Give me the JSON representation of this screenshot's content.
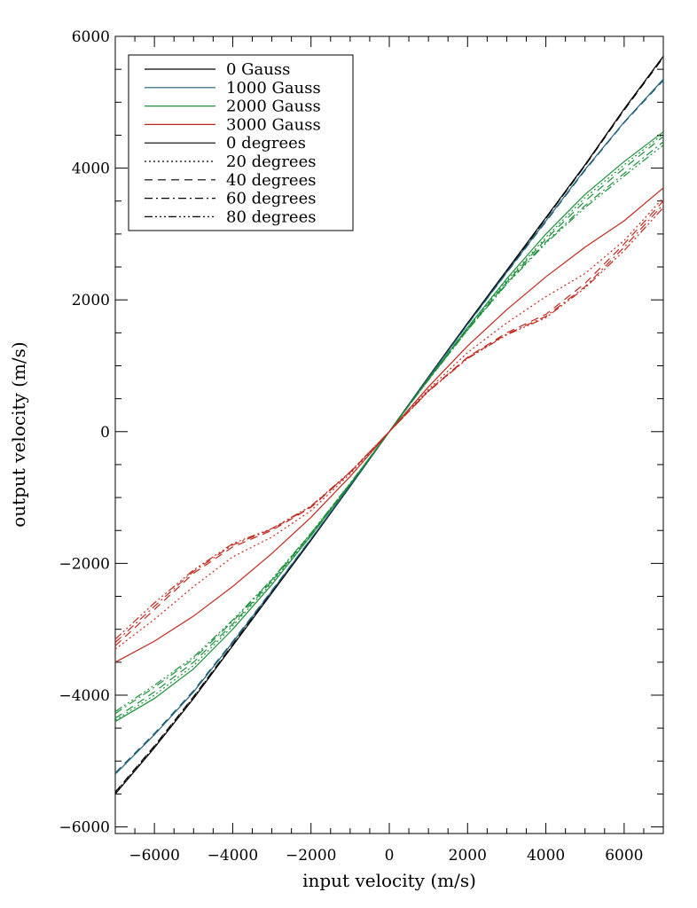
{
  "chart_data": {
    "type": "line",
    "title": "",
    "xlabel": "input velocity (m/s)",
    "ylabel": "output velocity (m/s)",
    "xlim": [
      -7000,
      7000
    ],
    "ylim": [
      -6100,
      6000
    ],
    "x_ticks": [
      -6000,
      -4000,
      -2000,
      0,
      2000,
      4000,
      6000
    ],
    "x_tick_labels": [
      "−6000",
      "−4000",
      "−2000",
      "0",
      "2000",
      "4000",
      "6000"
    ],
    "y_ticks": [
      -6000,
      -4000,
      -2000,
      0,
      2000,
      4000,
      6000
    ],
    "y_tick_labels": [
      "−6000",
      "−4000",
      "−2000",
      "0",
      "2000",
      "4000",
      "6000"
    ],
    "grid": false,
    "legend_position": "top-left",
    "legend": [
      {
        "label": "0 Gauss",
        "color": "#000000",
        "dash": "solid"
      },
      {
        "label": "1000 Gauss",
        "color": "#1f5f7a",
        "dash": "solid"
      },
      {
        "label": "2000 Gauss",
        "color": "#1c8f3a",
        "dash": "solid"
      },
      {
        "label": "3000 Gauss",
        "color": "#c0281e",
        "dash": "solid"
      },
      {
        "label": "0 degrees",
        "color": "#000000",
        "dash": "solid"
      },
      {
        "label": "20 degrees",
        "color": "#000000",
        "dash": "dotted"
      },
      {
        "label": "40 degrees",
        "color": "#000000",
        "dash": "dashed"
      },
      {
        "label": "60 degrees",
        "color": "#000000",
        "dash": "dashdot"
      },
      {
        "label": "80 degrees",
        "color": "#000000",
        "dash": "dashdotdotdot"
      }
    ],
    "x": [
      -7000,
      -6000,
      -5000,
      -4000,
      -3000,
      -2000,
      -1000,
      0,
      1000,
      2000,
      3000,
      4000,
      5000,
      6000,
      7000
    ],
    "series": [
      {
        "field": "0 Gauss",
        "angle": "0 degrees",
        "color": "#000000",
        "dash": "solid",
        "values": [
          -5500,
          -4800,
          -4050,
          -3250,
          -2450,
          -1650,
          -830,
          0,
          830,
          1650,
          2450,
          3250,
          4050,
          4900,
          5700
        ]
      },
      {
        "field": "0 Gauss",
        "angle": "20 degrees",
        "color": "#000000",
        "dash": "dotted",
        "values": [
          -5480,
          -4780,
          -4030,
          -3240,
          -2440,
          -1645,
          -828,
          0,
          828,
          1645,
          2440,
          3240,
          4040,
          4890,
          5690
        ]
      },
      {
        "field": "0 Gauss",
        "angle": "40 degrees",
        "color": "#000000",
        "dash": "dashed",
        "values": [
          -5470,
          -4770,
          -4020,
          -3230,
          -2435,
          -1640,
          -825,
          0,
          825,
          1640,
          2435,
          3235,
          4035,
          4880,
          5680
        ]
      },
      {
        "field": "1000 Gauss",
        "angle": "0 degrees",
        "color": "#1f5f7a",
        "dash": "solid",
        "values": [
          -5200,
          -4600,
          -3950,
          -3200,
          -2420,
          -1630,
          -820,
          0,
          820,
          1630,
          2420,
          3200,
          3980,
          4700,
          5350
        ]
      },
      {
        "field": "1000 Gauss",
        "angle": "40 degrees",
        "color": "#1f5f7a",
        "dash": "dashed",
        "values": [
          -5180,
          -4580,
          -3930,
          -3185,
          -2410,
          -1625,
          -818,
          0,
          818,
          1625,
          2410,
          3185,
          3965,
          4690,
          5330
        ]
      },
      {
        "field": "2000 Gauss",
        "angle": "0 degrees",
        "color": "#1c8f3a",
        "dash": "solid",
        "values": [
          -4400,
          -4050,
          -3600,
          -3000,
          -2320,
          -1580,
          -800,
          0,
          800,
          1580,
          2320,
          3000,
          3600,
          4100,
          4550
        ]
      },
      {
        "field": "2000 Gauss",
        "angle": "20 degrees",
        "color": "#1c8f3a",
        "dash": "dotted",
        "values": [
          -4380,
          -4000,
          -3550,
          -2950,
          -2290,
          -1565,
          -795,
          0,
          795,
          1565,
          2290,
          2950,
          3550,
          4050,
          4520
        ]
      },
      {
        "field": "2000 Gauss",
        "angle": "40 degrees",
        "color": "#1c8f3a",
        "dash": "dashed",
        "values": [
          -4350,
          -3950,
          -3500,
          -2920,
          -2270,
          -1555,
          -790,
          0,
          790,
          1555,
          2270,
          2920,
          3500,
          4000,
          4480
        ]
      },
      {
        "field": "2000 Gauss",
        "angle": "60 degrees",
        "color": "#1c8f3a",
        "dash": "dashdot",
        "values": [
          -4280,
          -3880,
          -3450,
          -2880,
          -2250,
          -1545,
          -785,
          0,
          785,
          1545,
          2250,
          2880,
          3430,
          3920,
          4400
        ]
      },
      {
        "field": "2000 Gauss",
        "angle": "80 degrees",
        "color": "#1c8f3a",
        "dash": "dashdotdotdot",
        "values": [
          -4250,
          -3850,
          -3420,
          -2860,
          -2240,
          -1540,
          -782,
          0,
          782,
          1540,
          2240,
          2860,
          3400,
          3880,
          4350
        ]
      },
      {
        "field": "3000 Gauss",
        "angle": "0 degrees",
        "color": "#c0281e",
        "dash": "solid",
        "values": [
          -3500,
          -3180,
          -2800,
          -2350,
          -1850,
          -1300,
          -680,
          0,
          680,
          1300,
          1850,
          2350,
          2800,
          3200,
          3700
        ]
      },
      {
        "field": "3000 Gauss",
        "angle": "20 degrees",
        "color": "#c0281e",
        "dash": "dotted",
        "values": [
          -3300,
          -2850,
          -2350,
          -1900,
          -1600,
          -1200,
          -640,
          0,
          640,
          1200,
          1650,
          2050,
          2400,
          2900,
          3550
        ]
      },
      {
        "field": "3000 Gauss",
        "angle": "40 degrees",
        "color": "#c0281e",
        "dash": "dashed",
        "values": [
          -3250,
          -2700,
          -2150,
          -1750,
          -1500,
          -1150,
          -620,
          0,
          620,
          1130,
          1500,
          1780,
          2250,
          2850,
          3500
        ]
      },
      {
        "field": "3000 Gauss",
        "angle": "60 degrees",
        "color": "#c0281e",
        "dash": "dashdot",
        "values": [
          -3200,
          -2650,
          -2120,
          -1720,
          -1480,
          -1140,
          -615,
          0,
          615,
          1120,
          1480,
          1750,
          2200,
          2800,
          3450
        ]
      },
      {
        "field": "3000 Gauss",
        "angle": "80 degrees",
        "color": "#c0281e",
        "dash": "dashdotdotdot",
        "values": [
          -3150,
          -2600,
          -2100,
          -1700,
          -1470,
          -1130,
          -610,
          0,
          610,
          1110,
          1470,
          1730,
          2180,
          2750,
          3400
        ]
      }
    ]
  }
}
